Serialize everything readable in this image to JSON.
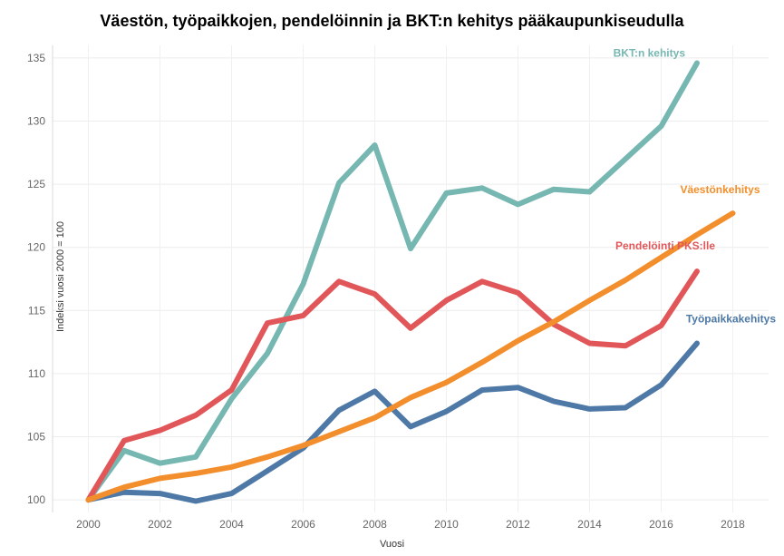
{
  "chart_data": {
    "type": "line",
    "title": "Väestön, työpaikkojen, pendelöinnin ja BKT:n kehitys pääkaupunkiseudulla",
    "xlabel": "Vuosi",
    "ylabel": "Indeksi vuosi 2000 = 100",
    "xlim": [
      1999,
      2019
    ],
    "ylim": [
      99,
      136
    ],
    "xticks": [
      2000,
      2002,
      2004,
      2006,
      2008,
      2010,
      2012,
      2014,
      2016,
      2018
    ],
    "yticks": [
      100,
      105,
      110,
      115,
      120,
      125,
      130,
      135
    ],
    "grid": true,
    "series": [
      {
        "name": "BKT:n kehitys",
        "color": "#76b7b2",
        "x": [
          2000,
          2001,
          2002,
          2003,
          2004,
          2005,
          2006,
          2007,
          2008,
          2009,
          2010,
          2011,
          2012,
          2013,
          2014,
          2015,
          2016,
          2017
        ],
        "values": [
          100,
          103.9,
          102.9,
          103.4,
          108,
          111.6,
          117.1,
          125.1,
          128.1,
          119.9,
          124.3,
          124.7,
          123.4,
          124.6,
          124.4,
          127.0,
          129.6,
          134.6
        ]
      },
      {
        "name": "Väestönkehitys",
        "color": "#f28e2b",
        "x": [
          2000,
          2001,
          2002,
          2003,
          2004,
          2005,
          2006,
          2007,
          2008,
          2009,
          2010,
          2011,
          2012,
          2013,
          2014,
          2015,
          2016,
          2017,
          2018
        ],
        "values": [
          100,
          101,
          101.7,
          102.1,
          102.6,
          103.4,
          104.3,
          105.4,
          106.5,
          108.1,
          109.3,
          110.9,
          112.6,
          114.1,
          115.8,
          117.4,
          119.2,
          121.0,
          122.7
        ]
      },
      {
        "name": "Pendelöinti PKS:lle",
        "color": "#e15759",
        "x": [
          2000,
          2001,
          2002,
          2003,
          2004,
          2005,
          2006,
          2007,
          2008,
          2009,
          2010,
          2011,
          2012,
          2013,
          2014,
          2015,
          2016,
          2017
        ],
        "values": [
          100,
          104.7,
          105.5,
          106.7,
          108.7,
          114.0,
          114.6,
          117.3,
          116.3,
          113.6,
          115.8,
          117.3,
          116.4,
          113.9,
          112.4,
          112.2,
          113.8,
          118.1
        ]
      },
      {
        "name": "Työpaikkakehitys",
        "color": "#4e79a7",
        "x": [
          2000,
          2001,
          2002,
          2003,
          2004,
          2005,
          2006,
          2007,
          2008,
          2009,
          2010,
          2011,
          2012,
          2013,
          2014,
          2015,
          2016,
          2017
        ],
        "values": [
          100,
          100.6,
          100.5,
          99.9,
          100.5,
          102.3,
          104.1,
          107.1,
          108.6,
          105.8,
          107.0,
          108.7,
          108.9,
          107.8,
          107.2,
          107.3,
          109.1,
          112.4
        ]
      }
    ]
  }
}
